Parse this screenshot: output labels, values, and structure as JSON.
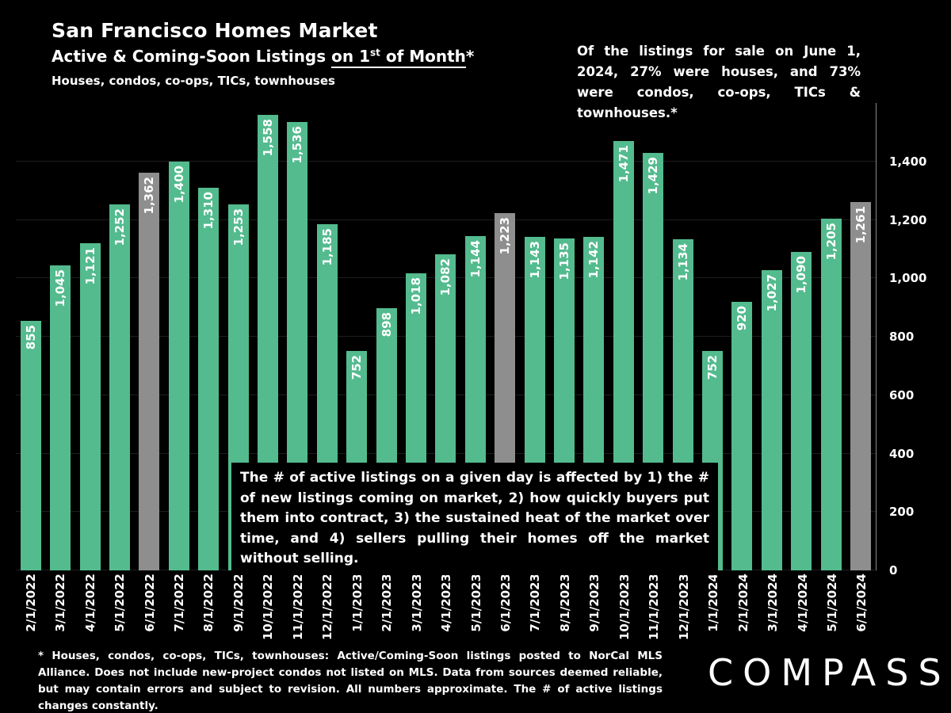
{
  "header": {
    "title": "San Francisco Homes Market",
    "subtitle_prefix": "Active & Coming-Soon Listings ",
    "subtitle_underlined_pre": "on 1",
    "subtitle_superscript": "st",
    "subtitle_underlined_post": " of Month",
    "subtitle_asterisk": "*",
    "property_types": "Houses, condos, co-ops, TICs, townhouses"
  },
  "callout": {
    "text": "Of the listings for sale on June 1, 2024, 27% were houses, and 73% were condos, co-ops, TICs & townhouses.*"
  },
  "annotation": {
    "text": "The # of active listings on a given day is affected by 1) the # of new listings coming on market, 2) how quickly buyers put them into contract, 3) the sustained heat of the market over time, and 4) sellers pulling their homes off the market without selling."
  },
  "footnote": {
    "text": "* Houses, condos, co-ops, TICs, townhouses: Active/Coming-Soon listings posted to NorCal MLS Alliance. Does not include new-project condos not listed on MLS. Data from sources deemed reliable, but may contain errors and subject to revision. All numbers approximate. The # of active listings changes constantly."
  },
  "logo": {
    "text": "COMPASS"
  },
  "colors": {
    "background": "#000000",
    "text": "#FFFFFF",
    "bar_green": "#53BB8E",
    "bar_gray": "#8E8E8E",
    "axis_line": "#8A8A8A"
  },
  "chart_data": {
    "type": "bar",
    "title": "Active & Coming-Soon Listings on 1st of Month",
    "subtitle": "Houses, condos, co-ops, TICs, townhouses",
    "categories": [
      "2/1/2022",
      "3/1/2022",
      "4/1/2022",
      "5/1/2022",
      "6/1/2022",
      "7/1/2022",
      "8/1/2022",
      "9/1/2022",
      "10/1/2022",
      "11/1/2022",
      "12/1/2022",
      "1/1/2023",
      "2/1/2023",
      "3/1/2023",
      "4/1/2023",
      "5/1/2023",
      "6/1/2023",
      "7/1/2023",
      "8/1/2023",
      "9/1/2023",
      "10/1/2023",
      "11/1/2023",
      "12/1/2023",
      "1/1/2024",
      "2/1/2024",
      "3/1/2024",
      "4/1/2024",
      "5/1/2024",
      "6/1/2024"
    ],
    "values": [
      855,
      1045,
      1121,
      1252,
      1362,
      1400,
      1310,
      1253,
      1558,
      1536,
      1185,
      752,
      898,
      1018,
      1082,
      1144,
      1223,
      1143,
      1135,
      1142,
      1471,
      1429,
      1134,
      752,
      920,
      1027,
      1090,
      1205,
      1261
    ],
    "value_labels": [
      "855",
      "1,045",
      "1,121",
      "1,252",
      "1,362",
      "1,400",
      "1,310",
      "1,253",
      "1,558",
      "1,536",
      "1,185",
      "752",
      "898",
      "1,018",
      "1,082",
      "1,144",
      "1,223",
      "1,143",
      "1,135",
      "1,142",
      "1,471",
      "1,429",
      "1,134",
      "752",
      "920",
      "1,027",
      "1,090",
      "1,205",
      "1,261"
    ],
    "bar_color": "#53BB8E",
    "highlight_indices": [
      4,
      16,
      28
    ],
    "highlight_color": "#8E8E8E",
    "ylim": [
      0,
      1600
    ],
    "yticks": [
      0,
      200,
      400,
      600,
      800,
      1000,
      1200,
      1400
    ],
    "ytick_labels": [
      "0",
      "200",
      "400",
      "600",
      "800",
      "1,000",
      "1,200",
      "1,400"
    ],
    "legend": "none",
    "grid": "faint-horizontal",
    "value_label_rotation": 90,
    "x_label_rotation": 90,
    "y_axis_position": "right"
  }
}
